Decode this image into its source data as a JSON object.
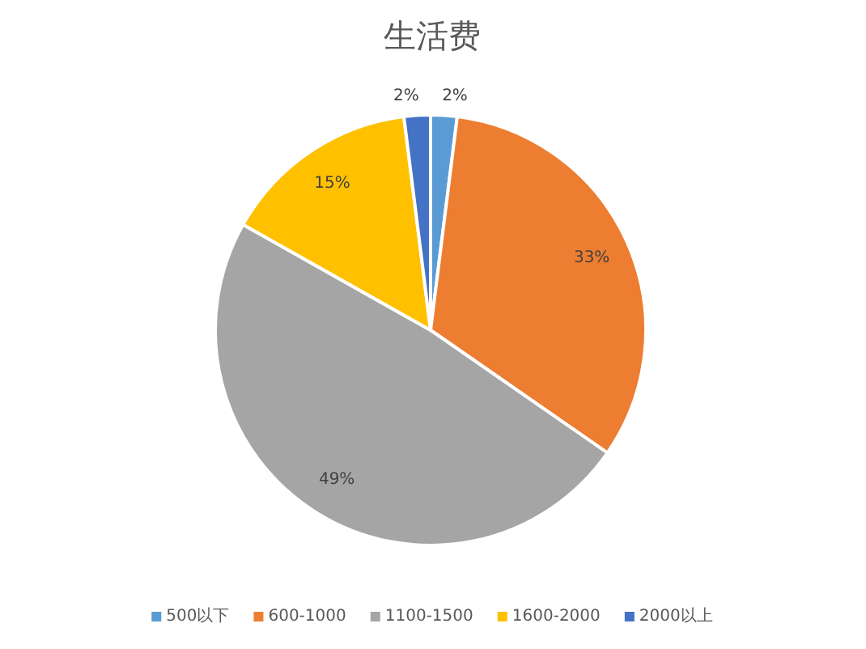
{
  "chart_data": {
    "type": "pie",
    "title": "生活费",
    "categories": [
      "500以下",
      "600-1000",
      "1100-1500",
      "1600-2000",
      "2000以上"
    ],
    "values": [
      2,
      33,
      49,
      15,
      2
    ],
    "value_labels": [
      "2%",
      "33%",
      "49%",
      "15%",
      "2%"
    ],
    "colors": [
      "#5b9bd5",
      "#ed7d31",
      "#a5a5a5",
      "#ffc000",
      "#4472c4"
    ],
    "legend": "bottom"
  }
}
